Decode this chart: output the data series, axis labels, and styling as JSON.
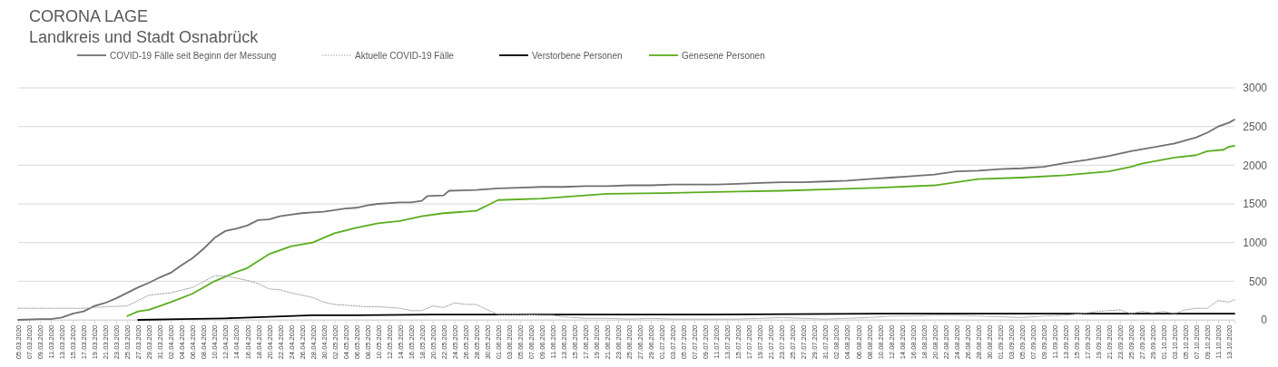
{
  "chart_data": {
    "type": "line",
    "title": "CORONA LAGE",
    "subtitle": "Landkreis und Stadt Osnabrück",
    "legend": "top",
    "grid": "y",
    "marker": "none",
    "xlim": [
      "2020-03-05",
      "2020-10-14"
    ],
    "ylim": [
      0,
      3000
    ],
    "yticks": [
      0,
      500,
      1000,
      1500,
      2000,
      2500,
      3000
    ],
    "xticks": [
      {
        "value": "2020-03-05",
        "label": "05.03.2020"
      },
      {
        "value": "2020-03-07",
        "label": "07.03.2020"
      },
      {
        "value": "2020-03-09",
        "label": "09.03.2020"
      },
      {
        "value": "2020-03-11",
        "label": "11.03.2020"
      },
      {
        "value": "2020-03-13",
        "label": "13.03.2020"
      },
      {
        "value": "2020-03-15",
        "label": "15.03.2020"
      },
      {
        "value": "2020-03-17",
        "label": "17.03.2020"
      },
      {
        "value": "2020-03-19",
        "label": "19.03.2020"
      },
      {
        "value": "2020-03-21",
        "label": "21.03.2020"
      },
      {
        "value": "2020-03-23",
        "label": "23.03.2020"
      },
      {
        "value": "2020-03-25",
        "label": "25.03.2020"
      },
      {
        "value": "2020-03-27",
        "label": "27.03.2020"
      },
      {
        "value": "2020-03-29",
        "label": "29.03.2020"
      },
      {
        "value": "2020-03-31",
        "label": "31.03.2020"
      },
      {
        "value": "2020-04-02",
        "label": "02.04.2020"
      },
      {
        "value": "2020-04-04",
        "label": "04.04.2020"
      },
      {
        "value": "2020-04-06",
        "label": "06.04.2020"
      },
      {
        "value": "2020-04-08",
        "label": "08.04.2020"
      },
      {
        "value": "2020-04-10",
        "label": "10.04.2020"
      },
      {
        "value": "2020-04-12",
        "label": "12.04.2020"
      },
      {
        "value": "2020-04-14",
        "label": "14.04.2020"
      },
      {
        "value": "2020-04-16",
        "label": "16.04.2020"
      },
      {
        "value": "2020-04-18",
        "label": "18.04.2020"
      },
      {
        "value": "2020-04-20",
        "label": "20.04.2020"
      },
      {
        "value": "2020-04-22",
        "label": "22.04.2020"
      },
      {
        "value": "2020-04-24",
        "label": "24.04.2020"
      },
      {
        "value": "2020-04-26",
        "label": "26.04.2020"
      },
      {
        "value": "2020-04-28",
        "label": "28.04.2020"
      },
      {
        "value": "2020-04-30",
        "label": "30.04.2020"
      },
      {
        "value": "2020-05-02",
        "label": "02.05.2020"
      },
      {
        "value": "2020-05-04",
        "label": "04.05.2020"
      },
      {
        "value": "2020-05-06",
        "label": "06.05.2020"
      },
      {
        "value": "2020-05-08",
        "label": "08.05.2020"
      },
      {
        "value": "2020-05-10",
        "label": "10.05.2020"
      },
      {
        "value": "2020-05-12",
        "label": "12.05.2020"
      },
      {
        "value": "2020-05-14",
        "label": "14.05.2020"
      },
      {
        "value": "2020-05-16",
        "label": "16.05.2020"
      },
      {
        "value": "2020-05-18",
        "label": "18.05.2020"
      },
      {
        "value": "2020-05-20",
        "label": "20.05.2020"
      },
      {
        "value": "2020-05-22",
        "label": "22.05.2020"
      },
      {
        "value": "2020-05-24",
        "label": "24.05.2020"
      },
      {
        "value": "2020-05-26",
        "label": "26.05.2020"
      },
      {
        "value": "2020-05-28",
        "label": "28.05.2020"
      },
      {
        "value": "2020-05-30",
        "label": "30.05.2020"
      },
      {
        "value": "2020-06-01",
        "label": "01.06.2020"
      },
      {
        "value": "2020-06-03",
        "label": "03.06.2020"
      },
      {
        "value": "2020-06-05",
        "label": "05.06.2020"
      },
      {
        "value": "2020-06-07",
        "label": "07.06.2020"
      },
      {
        "value": "2020-06-09",
        "label": "09.06.2020"
      },
      {
        "value": "2020-06-11",
        "label": "11.06.2020"
      },
      {
        "value": "2020-06-13",
        "label": "13.06.2020"
      },
      {
        "value": "2020-06-15",
        "label": "15.06.2020"
      },
      {
        "value": "2020-06-17",
        "label": "17.06.2020"
      },
      {
        "value": "2020-06-19",
        "label": "19.06.2020"
      },
      {
        "value": "2020-06-21",
        "label": "21.06.2020"
      },
      {
        "value": "2020-06-23",
        "label": "23.06.2020"
      },
      {
        "value": "2020-06-25",
        "label": "25.06.2020"
      },
      {
        "value": "2020-06-27",
        "label": "27.06.2020"
      },
      {
        "value": "2020-06-29",
        "label": "29.06.2020"
      },
      {
        "value": "2020-07-01",
        "label": "01.07.2020"
      },
      {
        "value": "2020-07-03",
        "label": "03.07.2020"
      },
      {
        "value": "2020-07-05",
        "label": "05.07.2020"
      },
      {
        "value": "2020-07-07",
        "label": "07.07.2020"
      },
      {
        "value": "2020-07-09",
        "label": "09.07.2020"
      },
      {
        "value": "2020-07-11",
        "label": "11.07.2020"
      },
      {
        "value": "2020-07-13",
        "label": "13.07.2020"
      },
      {
        "value": "2020-07-15",
        "label": "15.07.2020"
      },
      {
        "value": "2020-07-17",
        "label": "17.07.2020"
      },
      {
        "value": "2020-07-19",
        "label": "19.07.2020"
      },
      {
        "value": "2020-07-21",
        "label": "21.07.2020"
      },
      {
        "value": "2020-07-23",
        "label": "23.07.2020"
      },
      {
        "value": "2020-07-25",
        "label": "25.07.2020"
      },
      {
        "value": "2020-07-27",
        "label": "27.07.2020"
      },
      {
        "value": "2020-07-29",
        "label": "29.07.2020"
      },
      {
        "value": "2020-07-31",
        "label": "31.07.2020"
      },
      {
        "value": "2020-08-02",
        "label": "02.08.2020"
      },
      {
        "value": "2020-08-04",
        "label": "04.08.2020"
      },
      {
        "value": "2020-08-06",
        "label": "06.08.2020"
      },
      {
        "value": "2020-08-08",
        "label": "08.08.2020"
      },
      {
        "value": "2020-08-10",
        "label": "10.08.2020"
      },
      {
        "value": "2020-08-12",
        "label": "12.08.2020"
      },
      {
        "value": "2020-08-14",
        "label": "14.08.2020"
      },
      {
        "value": "2020-08-16",
        "label": "16.08.2020"
      },
      {
        "value": "2020-08-18",
        "label": "18.08.2020"
      },
      {
        "value": "2020-08-20",
        "label": "20.08.2020"
      },
      {
        "value": "2020-08-22",
        "label": "22.08.2020"
      },
      {
        "value": "2020-08-24",
        "label": "24.08.2020"
      },
      {
        "value": "2020-08-26",
        "label": "26.08.2020"
      },
      {
        "value": "2020-08-28",
        "label": "28.08.2020"
      },
      {
        "value": "2020-08-30",
        "label": "30.08.2020"
      },
      {
        "value": "2020-09-01",
        "label": "01.09.2020"
      },
      {
        "value": "2020-09-03",
        "label": "03.09.2020"
      },
      {
        "value": "2020-09-05",
        "label": "05.09.2020"
      },
      {
        "value": "2020-09-07",
        "label": "07.09.2020"
      },
      {
        "value": "2020-09-09",
        "label": "09.09.2020"
      },
      {
        "value": "2020-09-11",
        "label": "11.09.2020"
      },
      {
        "value": "2020-09-13",
        "label": "13.09.2020"
      },
      {
        "value": "2020-09-15",
        "label": "15.09.2020"
      },
      {
        "value": "2020-09-17",
        "label": "17.09.2020"
      },
      {
        "value": "2020-09-19",
        "label": "19.09.2020"
      },
      {
        "value": "2020-09-21",
        "label": "21.09.2020"
      },
      {
        "value": "2020-09-23",
        "label": "23.09.2020"
      },
      {
        "value": "2020-09-25",
        "label": "25.09.2020"
      },
      {
        "value": "2020-09-27",
        "label": "27.09.2020"
      },
      {
        "value": "2020-09-29",
        "label": "29.09.2020"
      },
      {
        "value": "2020-10-01",
        "label": "01.10.2020"
      },
      {
        "value": "2020-10-03",
        "label": "03.10.2020"
      },
      {
        "value": "2020-10-05",
        "label": "05.10.2020"
      },
      {
        "value": "2020-10-07",
        "label": "07.10.2020"
      },
      {
        "value": "2020-10-09",
        "label": "09.10.2020"
      },
      {
        "value": "2020-10-11",
        "label": "11.10.2020"
      },
      {
        "value": "2020-10-13",
        "label": "13.10.2020"
      }
    ],
    "series": [
      {
        "name": "COVID-19 Fälle seit Beginn der Messung",
        "color": "#707070",
        "line_style": "solid",
        "x": [
          "2020-03-05",
          "2020-03-09",
          "2020-03-11",
          "2020-03-13",
          "2020-03-15",
          "2020-03-17",
          "2020-03-19",
          "2020-03-21",
          "2020-03-23",
          "2020-03-25",
          "2020-03-27",
          "2020-03-29",
          "2020-03-31",
          "2020-04-02",
          "2020-04-04",
          "2020-04-06",
          "2020-04-08",
          "2020-04-10",
          "2020-04-12",
          "2020-04-14",
          "2020-04-16",
          "2020-04-18",
          "2020-04-20",
          "2020-04-22",
          "2020-04-24",
          "2020-04-26",
          "2020-04-28",
          "2020-04-30",
          "2020-05-02",
          "2020-05-04",
          "2020-05-06",
          "2020-05-08",
          "2020-05-10",
          "2020-05-12",
          "2020-05-14",
          "2020-05-16",
          "2020-05-18",
          "2020-05-19",
          "2020-05-22",
          "2020-05-23",
          "2020-05-28",
          "2020-06-01",
          "2020-06-05",
          "2020-06-09",
          "2020-06-13",
          "2020-06-17",
          "2020-06-21",
          "2020-06-25",
          "2020-06-29",
          "2020-07-03",
          "2020-07-07",
          "2020-07-11",
          "2020-07-15",
          "2020-07-19",
          "2020-07-23",
          "2020-07-27",
          "2020-07-31",
          "2020-08-04",
          "2020-08-08",
          "2020-08-12",
          "2020-08-16",
          "2020-08-20",
          "2020-08-24",
          "2020-08-28",
          "2020-09-01",
          "2020-09-05",
          "2020-09-09",
          "2020-09-13",
          "2020-09-17",
          "2020-09-21",
          "2020-09-25",
          "2020-09-29",
          "2020-10-03",
          "2020-10-07",
          "2020-10-09",
          "2020-10-11",
          "2020-10-13",
          "2020-10-14"
        ],
        "values": [
          0,
          10,
          10,
          30,
          80,
          110,
          180,
          220,
          280,
          350,
          420,
          480,
          550,
          610,
          710,
          800,
          920,
          1060,
          1150,
          1180,
          1220,
          1290,
          1300,
          1340,
          1360,
          1380,
          1390,
          1400,
          1420,
          1440,
          1450,
          1480,
          1500,
          1510,
          1520,
          1520,
          1540,
          1600,
          1610,
          1670,
          1680,
          1700,
          1710,
          1720,
          1720,
          1730,
          1730,
          1740,
          1740,
          1750,
          1750,
          1750,
          1760,
          1770,
          1780,
          1780,
          1790,
          1800,
          1820,
          1840,
          1860,
          1880,
          1920,
          1930,
          1950,
          1960,
          1980,
          2030,
          2070,
          2120,
          2180,
          2230,
          2280,
          2360,
          2420,
          2500,
          2550,
          2590
        ]
      },
      {
        "name": "Aktuelle COVID-19 Fälle",
        "color": "#a0a0a0",
        "line_style": "dotted",
        "x": [
          "2020-03-05",
          "2020-03-09",
          "2020-03-13",
          "2020-03-17",
          "2020-03-21",
          "2020-03-25",
          "2020-03-29",
          "2020-04-02",
          "2020-04-06",
          "2020-04-10",
          "2020-04-12",
          "2020-04-14",
          "2020-04-16",
          "2020-04-18",
          "2020-04-20",
          "2020-04-22",
          "2020-04-24",
          "2020-04-26",
          "2020-04-28",
          "2020-04-30",
          "2020-05-02",
          "2020-05-04",
          "2020-05-06",
          "2020-05-08",
          "2020-05-10",
          "2020-05-12",
          "2020-05-14",
          "2020-05-16",
          "2020-05-18",
          "2020-05-20",
          "2020-05-22",
          "2020-05-24",
          "2020-05-26",
          "2020-05-28",
          "2020-05-30",
          "2020-06-01",
          "2020-06-03",
          "2020-06-05",
          "2020-06-09",
          "2020-06-11",
          "2020-06-13",
          "2020-06-15",
          "2020-06-17",
          "2020-06-21",
          "2020-06-25",
          "2020-06-29",
          "2020-07-03",
          "2020-07-07",
          "2020-07-11",
          "2020-07-15",
          "2020-07-19",
          "2020-07-23",
          "2020-07-27",
          "2020-07-31",
          "2020-08-04",
          "2020-08-08",
          "2020-08-12",
          "2020-08-16",
          "2020-08-20",
          "2020-08-24",
          "2020-08-28",
          "2020-09-01",
          "2020-09-05",
          "2020-09-09",
          "2020-09-13",
          "2020-09-17",
          "2020-09-19",
          "2020-09-21",
          "2020-09-23",
          "2020-09-25",
          "2020-09-27",
          "2020-09-29",
          "2020-10-01",
          "2020-10-03",
          "2020-10-05",
          "2020-10-07",
          "2020-10-09",
          "2020-10-11",
          "2020-10-13",
          "2020-10-14"
        ],
        "values": [
          150,
          150,
          150,
          150,
          170,
          180,
          320,
          350,
          420,
          570,
          570,
          540,
          510,
          470,
          400,
          390,
          350,
          320,
          290,
          230,
          200,
          190,
          180,
          170,
          170,
          160,
          150,
          120,
          120,
          180,
          160,
          220,
          200,
          200,
          130,
          70,
          70,
          70,
          60,
          60,
          40,
          30,
          20,
          20,
          10,
          20,
          10,
          10,
          10,
          10,
          20,
          30,
          20,
          10,
          20,
          30,
          50,
          50,
          60,
          60,
          50,
          40,
          30,
          50,
          60,
          90,
          110,
          120,
          130,
          80,
          110,
          90,
          110,
          80,
          130,
          150,
          150,
          250,
          230,
          260
        ]
      },
      {
        "name": "Verstorbene Personen",
        "color": "#000000",
        "line_style": "solid",
        "x": [
          "2020-03-27",
          "2020-04-04",
          "2020-04-12",
          "2020-04-20",
          "2020-04-28",
          "2020-05-06",
          "2020-05-20",
          "2020-06-10",
          "2020-07-10",
          "2020-08-10",
          "2020-09-10",
          "2020-10-14"
        ],
        "values": [
          0,
          10,
          20,
          40,
          60,
          60,
          70,
          70,
          70,
          80,
          80,
          80
        ]
      },
      {
        "name": "Genesene Personen",
        "color": "#5aad1e",
        "line_style": "solid",
        "x": [
          "2020-03-25",
          "2020-03-27",
          "2020-03-29",
          "2020-04-02",
          "2020-04-06",
          "2020-04-10",
          "2020-04-14",
          "2020-04-16",
          "2020-04-20",
          "2020-04-24",
          "2020-04-28",
          "2020-05-02",
          "2020-05-06",
          "2020-05-10",
          "2020-05-14",
          "2020-05-18",
          "2020-05-22",
          "2020-05-28",
          "2020-05-30",
          "2020-06-01",
          "2020-06-09",
          "2020-06-13",
          "2020-06-21",
          "2020-07-01",
          "2020-07-15",
          "2020-07-23",
          "2020-08-01",
          "2020-08-10",
          "2020-08-20",
          "2020-08-28",
          "2020-09-05",
          "2020-09-13",
          "2020-09-21",
          "2020-09-25",
          "2020-09-27",
          "2020-10-03",
          "2020-10-07",
          "2020-10-09",
          "2020-10-12",
          "2020-10-13",
          "2020-10-14"
        ],
        "values": [
          50,
          110,
          130,
          230,
          340,
          500,
          620,
          670,
          850,
          950,
          1000,
          1120,
          1190,
          1250,
          1280,
          1340,
          1380,
          1410,
          1480,
          1550,
          1570,
          1590,
          1630,
          1640,
          1660,
          1670,
          1690,
          1710,
          1740,
          1820,
          1840,
          1870,
          1920,
          1980,
          2020,
          2100,
          2130,
          2180,
          2200,
          2240,
          2250
        ]
      }
    ]
  }
}
